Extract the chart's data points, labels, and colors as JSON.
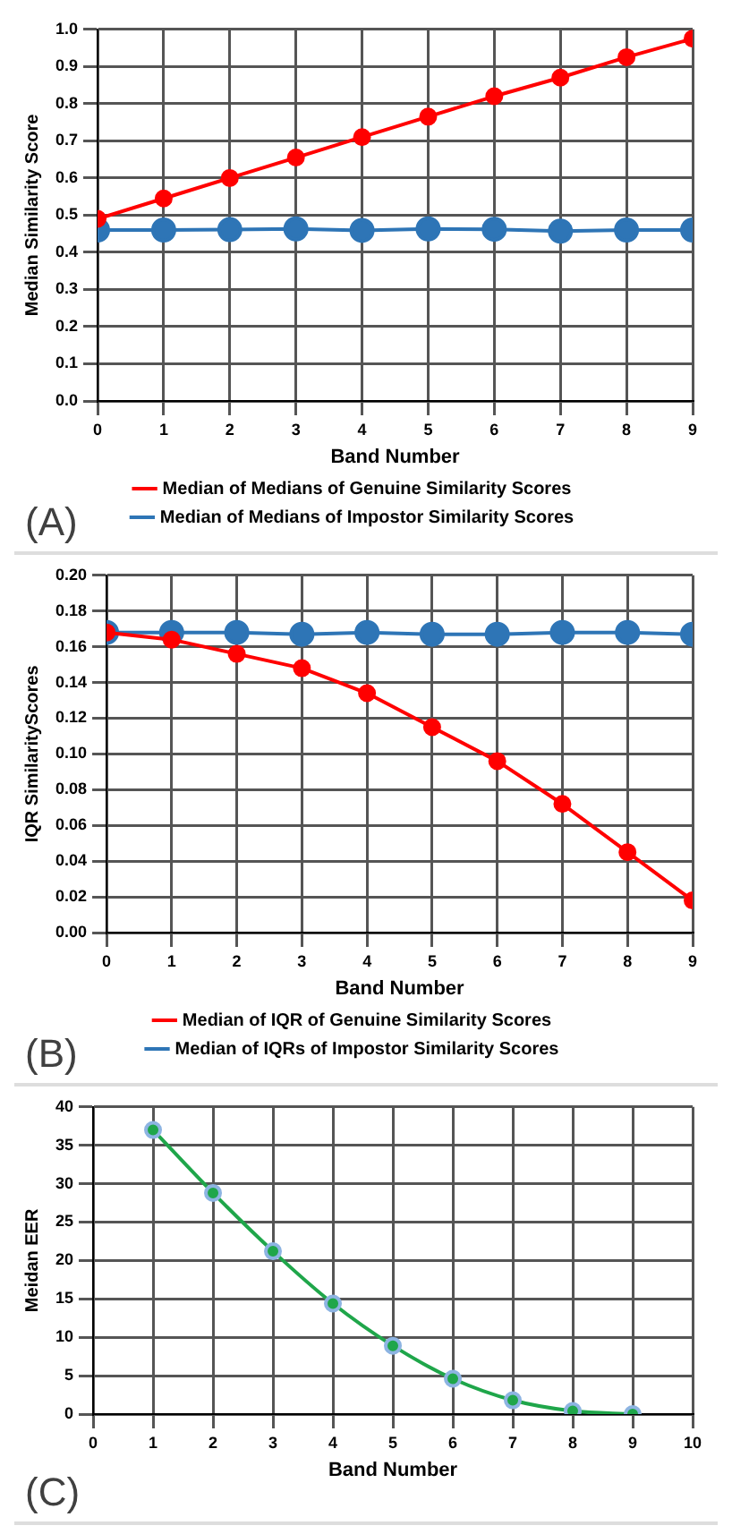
{
  "chart_data": [
    {
      "type": "line",
      "xlabel": "Band Number",
      "ylabel": "Median Similarity Score",
      "x": [
        0,
        1,
        2,
        3,
        4,
        5,
        6,
        7,
        8,
        9
      ],
      "xlim": [
        0,
        9
      ],
      "xticks": [
        0,
        1,
        2,
        3,
        4,
        5,
        6,
        7,
        8,
        9
      ],
      "ylim": [
        0,
        1
      ],
      "yticks": [
        {
          "value": 0,
          "label": "0.0"
        },
        0.1,
        0.2,
        0.3,
        0.4,
        0.5,
        0.6,
        0.7,
        0.8,
        0.9,
        {
          "value": 1,
          "label": "1.0"
        }
      ],
      "grid": true,
      "legend": "bottom",
      "marker": "circle",
      "line_style": "solid",
      "annotations": [
        "(A)"
      ],
      "series": [
        {
          "name": "Median of Medians of Genuine Similarity Scores",
          "color": "#ff0000",
          "values": [
            0.49,
            0.545,
            0.6,
            0.655,
            0.71,
            0.765,
            0.82,
            0.87,
            0.925,
            0.975
          ]
        },
        {
          "name": "Median of Medians of Impostor Similarity Scores",
          "color": "#2e75b6",
          "values": [
            0.46,
            0.46,
            0.461,
            0.463,
            0.459,
            0.463,
            0.462,
            0.457,
            0.46,
            0.46
          ]
        }
      ]
    },
    {
      "type": "line",
      "xlabel": "Band Number",
      "ylabel": "IQR SimilarityScores",
      "x": [
        0,
        1,
        2,
        3,
        4,
        5,
        6,
        7,
        8,
        9
      ],
      "xlim": [
        0,
        9
      ],
      "xticks": [
        0,
        1,
        2,
        3,
        4,
        5,
        6,
        7,
        8,
        9
      ],
      "ylim": [
        0,
        0.2
      ],
      "yticks": [
        {
          "value": 0,
          "label": "0.00"
        },
        0.02,
        0.04,
        0.06,
        0.08,
        {
          "value": 0.1,
          "label": "0.10"
        },
        0.12,
        0.14,
        0.16,
        0.18,
        {
          "value": 0.2,
          "label": "0.20"
        }
      ],
      "grid": true,
      "legend": "bottom",
      "marker": "circle",
      "line_style": "solid",
      "annotations": [
        "(B)"
      ],
      "series": [
        {
          "name": "Median of IQR of Genuine Similarity Scores",
          "color": "#ff0000",
          "values": [
            0.168,
            0.164,
            0.156,
            0.148,
            0.134,
            0.115,
            0.096,
            0.072,
            0.045,
            0.018
          ]
        },
        {
          "name": "Median of IQRs of Impostor Similarity Scores",
          "color": "#2e75b6",
          "values": [
            0.168,
            0.168,
            0.168,
            0.167,
            0.168,
            0.167,
            0.167,
            0.168,
            0.168,
            0.167
          ]
        }
      ]
    },
    {
      "type": "line",
      "xlabel": "Band Number",
      "ylabel": "Meidan EER",
      "x": [
        1,
        2,
        3,
        4,
        5,
        6,
        7,
        8,
        9
      ],
      "xlim": [
        0,
        10
      ],
      "xticks": [
        0,
        1,
        2,
        3,
        4,
        5,
        6,
        7,
        8,
        9,
        10
      ],
      "ylim": [
        0,
        40
      ],
      "yticks": [
        0,
        5,
        10,
        15,
        20,
        25,
        30,
        35,
        40
      ],
      "grid": true,
      "legend": false,
      "marker": "circle",
      "line_style": "solid",
      "annotations": [
        "(C)"
      ],
      "series": [
        {
          "color": "#1fa64a",
          "values": [
            37,
            28.8,
            21.2,
            14.4,
            8.9,
            4.6,
            1.8,
            0.4,
            0
          ]
        }
      ]
    }
  ]
}
